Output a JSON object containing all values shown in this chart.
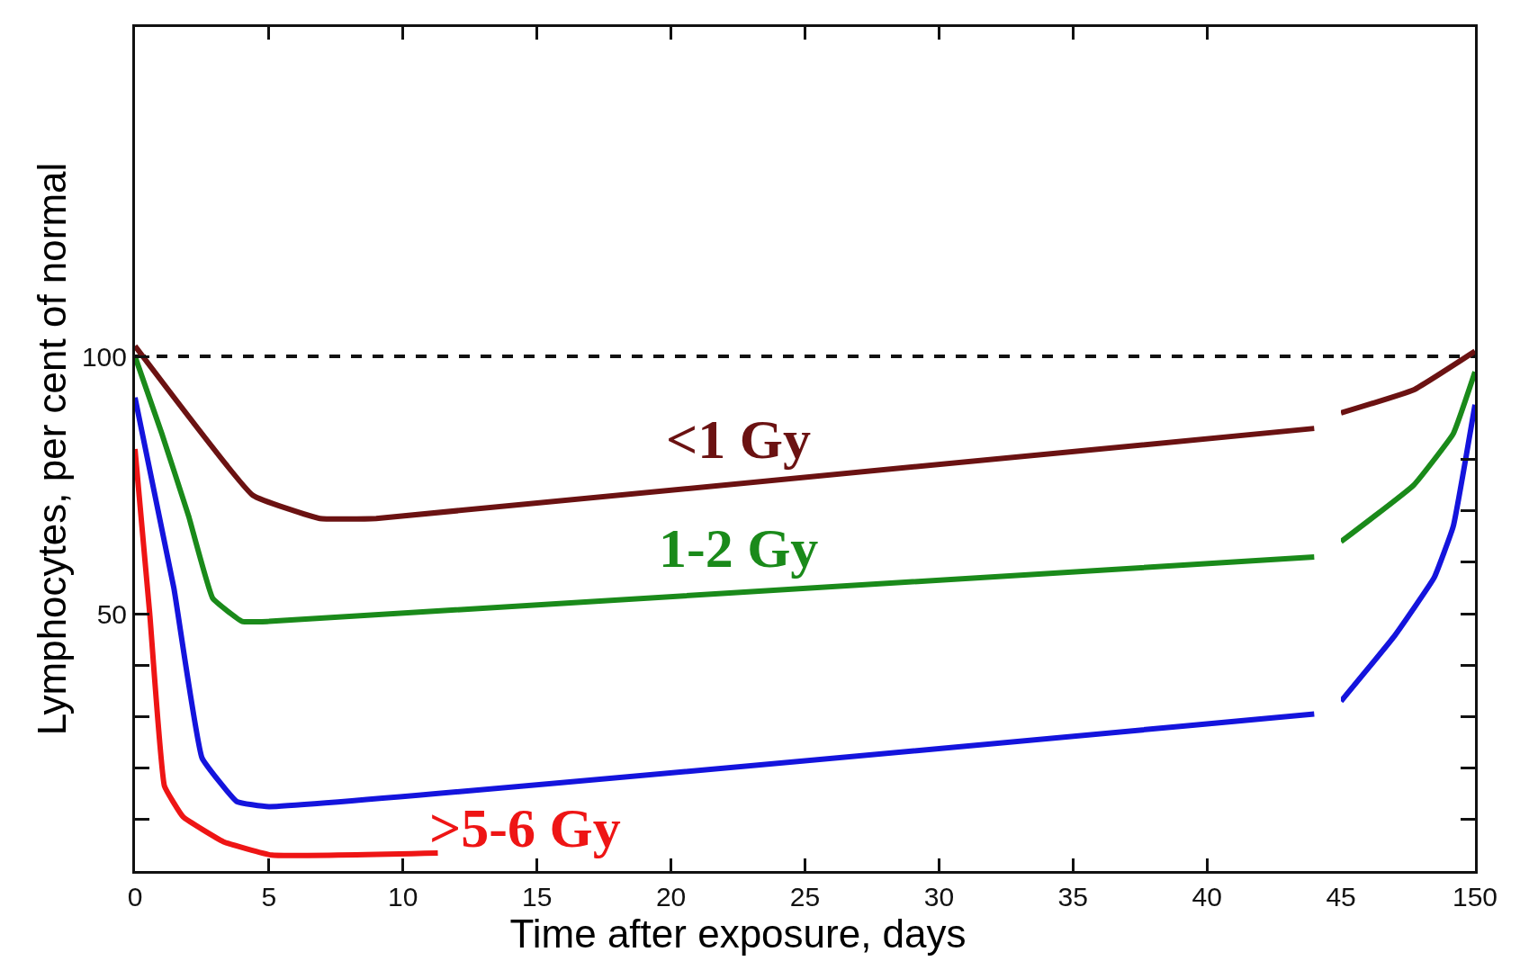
{
  "chart_data": [
    {
      "type": "line",
      "xlabel": "Time after exposure, days",
      "ylabel": "Lymphocytes, per cent of normal",
      "xlim": [
        0,
        45
      ],
      "xticks": [
        0,
        5,
        10,
        15,
        20,
        25,
        30,
        35,
        40
      ],
      "ylim": [
        0,
        164
      ],
      "yticks": [
        {
          "value": 10,
          "label": null
        },
        {
          "value": 20,
          "label": null
        },
        {
          "value": 30,
          "label": null
        },
        {
          "value": 40,
          "label": null
        },
        50,
        100
      ],
      "grid": false,
      "legend": false,
      "marker": "none",
      "line_style": "solid",
      "ref_lines": [
        {
          "axis": "y",
          "value": 100,
          "label": null,
          "color": "#111111",
          "line_style": "dashed"
        }
      ],
      "series": [
        {
          "name": "<1 Gy",
          "color": "#6b1212",
          "x": [
            0,
            4.4,
            6.9,
            9,
            44
          ],
          "values": [
            102,
            73,
            68.5,
            68.5,
            86
          ]
        },
        {
          "name": "1-2 Gy",
          "color": "#1a8a1a",
          "x": [
            0,
            1,
            2,
            2.9,
            4,
            5,
            44
          ],
          "values": [
            100,
            85,
            69,
            53,
            48.5,
            48.5,
            61
          ]
        },
        {
          "color": "#1414dd",
          "x": [
            0,
            1.45,
            2.5,
            3.8,
            5,
            44
          ],
          "values": [
            92,
            55,
            22,
            13.5,
            12.5,
            30.5
          ]
        },
        {
          "name": ">5-6 Gy",
          "color": "#ee1515",
          "x": [
            0,
            0.55,
            1.1,
            1.8,
            3.3,
            5.1,
            11.3
          ],
          "values": [
            82,
            50,
            16.5,
            10.5,
            5.7,
            3.1,
            3.5
          ]
        }
      ]
    },
    {
      "type": "line",
      "xlim": [
        45,
        150
      ],
      "xticks": [
        45,
        150
      ],
      "ylim": [
        0,
        164
      ],
      "yticks": [
        {
          "value": 10,
          "label": null
        },
        {
          "value": 20,
          "label": null
        },
        {
          "value": 30,
          "label": null
        },
        {
          "value": 40,
          "label": null
        },
        {
          "value": 50,
          "label": null
        },
        {
          "value": 60,
          "label": null
        },
        {
          "value": 70,
          "label": null
        },
        {
          "value": 80,
          "label": null
        }
      ],
      "tick_labels": "x",
      "grid": false,
      "legend": false,
      "marker": "none",
      "line_style": "solid",
      "ref_lines": [
        {
          "axis": "y",
          "value": 100,
          "label": null,
          "color": "#111111",
          "line_style": "dashed"
        }
      ],
      "series": [
        {
          "color": "#6b1212",
          "x": [
            45,
            102,
            150
          ],
          "values": [
            89,
            93.5,
            101
          ]
        },
        {
          "color": "#1a8a1a",
          "x": [
            45,
            102,
            133,
            150
          ],
          "values": [
            64,
            75,
            85,
            97
          ]
        },
        {
          "color": "#1414dd",
          "x": [
            45,
            87,
            118,
            133,
            150
          ],
          "values": [
            33,
            45.7,
            57,
            67,
            90.6
          ]
        }
      ]
    }
  ]
}
